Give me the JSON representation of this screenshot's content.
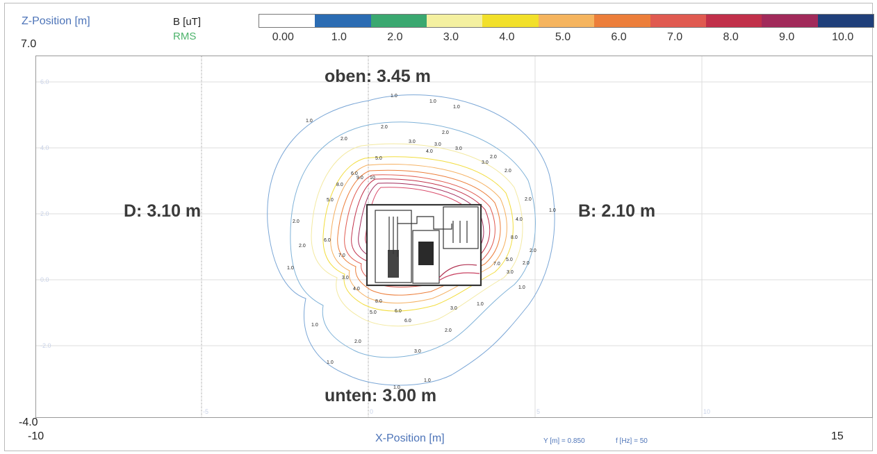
{
  "header": {
    "z_axis_label": "Z-Position [m]",
    "quantity": "B [uT]",
    "quantity_sub": "RMS"
  },
  "legend": {
    "ticks": [
      "0.00",
      "1.0",
      "2.0",
      "3.0",
      "4.0",
      "5.0",
      "6.0",
      "7.0",
      "8.0",
      "9.0",
      "10.0"
    ],
    "colors": [
      "#ffffff",
      "#2b6cb3",
      "#3aa870",
      "#f4f0a0",
      "#f2e02a",
      "#f5b45e",
      "#ec7e3a",
      "#e05a50",
      "#c1304a",
      "#a12a5a",
      "#1f3f7a"
    ]
  },
  "axes": {
    "z_max": "7.0",
    "z_min": "-4.0",
    "x_min": "-10",
    "x_max": "15",
    "x_label": "X-Position [m]",
    "y_info": "Y [m] = 0.850",
    "f_info": "f [Hz] = 50",
    "faint_z_ticks": [
      "6.0",
      "4.0",
      "2.0",
      "0.0",
      "-2.0"
    ],
    "faint_x_ticks": [
      "-5",
      "0",
      "5",
      "10"
    ]
  },
  "distances": {
    "oben": "oben: 3.45 m",
    "unten": "unten: 3.00 m",
    "left": "D: 3.10 m",
    "right": "B: 2.10 m"
  },
  "contours": {
    "levels": [
      "1.0",
      "2.0",
      "3.0",
      "4.0",
      "5.0",
      "6.0",
      "7.0",
      "8.0",
      "9.0",
      "10"
    ],
    "labels_1": [
      "1.0",
      "1.0",
      "1.0",
      "1.0",
      "1.0",
      "1.0",
      "1.0",
      "1.0",
      "1.0",
      "1.0",
      "1.0",
      "1.0"
    ],
    "labels_2": [
      "2.0",
      "2.0",
      "2.0",
      "2.0",
      "2.0",
      "2.0",
      "2.0",
      "2.0",
      "2.0",
      "2.0",
      "2.0",
      "2.0"
    ],
    "labels_3": [
      "3.0",
      "3.0",
      "3.0",
      "3.0",
      "3.0",
      "3.0",
      "3.0",
      "3.0"
    ],
    "labels_inner": [
      "4.0",
      "5.0",
      "6.0",
      "7.0",
      "8.0",
      "9.0",
      "10",
      "4.0",
      "5.0",
      "6.0",
      "8.0",
      "7.0",
      "5.0",
      "6.0",
      "8.0",
      "4.0",
      "5.0",
      "6.0"
    ]
  }
}
